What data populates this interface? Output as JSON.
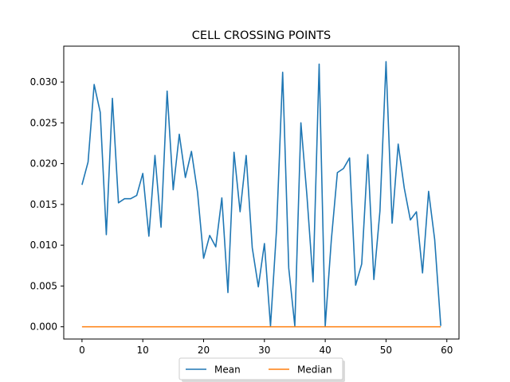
{
  "chart_data": {
    "type": "line",
    "title": "CELL CROSSING POINTS",
    "xlabel": "",
    "ylabel": "",
    "xlim": [
      -3,
      62
    ],
    "ylim": [
      -0.0015,
      0.0344
    ],
    "x_ticks": [
      0,
      10,
      20,
      30,
      40,
      50,
      60
    ],
    "x_tick_labels": [
      "0",
      "10",
      "20",
      "30",
      "40",
      "50",
      "60"
    ],
    "y_ticks": [
      0,
      0.005,
      0.01,
      0.015,
      0.02,
      0.025,
      0.03
    ],
    "y_tick_labels": [
      "0.000",
      "0.005",
      "0.010",
      "0.015",
      "0.020",
      "0.025",
      "0.030"
    ],
    "grid": false,
    "legend_position": "bottom-center",
    "x": [
      0,
      1,
      2,
      3,
      4,
      5,
      6,
      7,
      8,
      9,
      10,
      11,
      12,
      13,
      14,
      15,
      16,
      17,
      18,
      19,
      20,
      21,
      22,
      23,
      24,
      25,
      26,
      27,
      28,
      29,
      30,
      31,
      32,
      33,
      34,
      35,
      36,
      37,
      38,
      39,
      40,
      41,
      42,
      43,
      44,
      45,
      46,
      47,
      48,
      49,
      50,
      51,
      52,
      53,
      54,
      55,
      56,
      57,
      58,
      59
    ],
    "series": [
      {
        "name": "Mean",
        "color": "#1f77b4",
        "values": [
          0.0174,
          0.0202,
          0.0297,
          0.0263,
          0.0113,
          0.028,
          0.0152,
          0.0157,
          0.0157,
          0.0161,
          0.0188,
          0.0111,
          0.021,
          0.0122,
          0.0289,
          0.0168,
          0.0236,
          0.0183,
          0.0215,
          0.0165,
          0.0084,
          0.0112,
          0.0098,
          0.0158,
          0.0042,
          0.0214,
          0.0141,
          0.021,
          0.0097,
          0.0049,
          0.0102,
          0.0001,
          0.012,
          0.0312,
          0.0072,
          0.0001,
          0.025,
          0.016,
          0.0055,
          0.0322,
          0.0001,
          0.0106,
          0.0189,
          0.0194,
          0.0207,
          0.0051,
          0.0077,
          0.0211,
          0.0058,
          0.0142,
          0.0325,
          0.0127,
          0.0224,
          0.017,
          0.0131,
          0.0141,
          0.0066,
          0.0166,
          0.0107,
          0.0001
        ]
      },
      {
        "name": "Median",
        "color": "#ff7f0e",
        "values": [
          0,
          0,
          0,
          0,
          0,
          0,
          0,
          0,
          0,
          0,
          0,
          0,
          0,
          0,
          0,
          0,
          0,
          0,
          0,
          0,
          0,
          0,
          0,
          0,
          0,
          0,
          0,
          0,
          0,
          0,
          0,
          0,
          0,
          0,
          0,
          0,
          0,
          0,
          0,
          0,
          0,
          0,
          0,
          0,
          0,
          0,
          0,
          0,
          0,
          0,
          0,
          0,
          0,
          0,
          0,
          0,
          0,
          0,
          0,
          0
        ]
      }
    ]
  }
}
